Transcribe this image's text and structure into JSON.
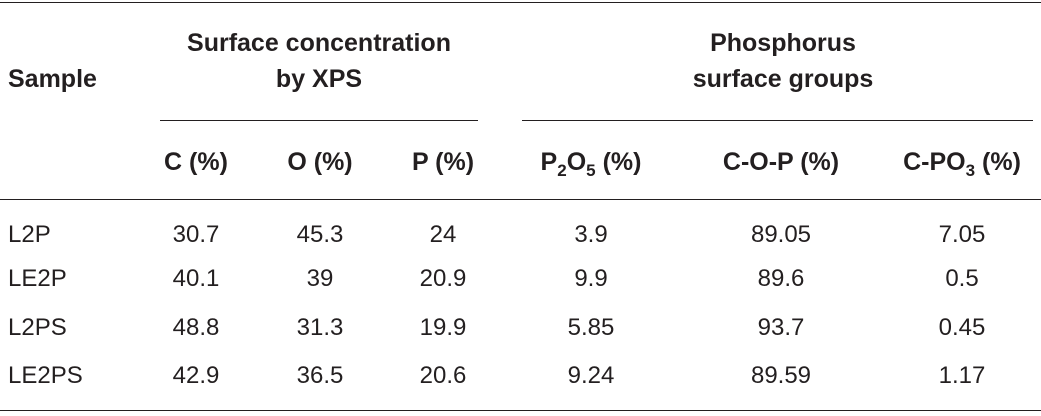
{
  "table": {
    "group_headers": {
      "sample": "Sample",
      "surface_line1": "Surface concentration",
      "surface_line2": "by XPS",
      "phosphorus_line1": "Phosphorus",
      "phosphorus_line2": "surface groups"
    },
    "columns": [
      {
        "main": "C (%)",
        "sub": "",
        "tail": ""
      },
      {
        "main": "O (%)",
        "sub": "",
        "tail": ""
      },
      {
        "main": "P (%)",
        "sub": "",
        "tail": ""
      },
      {
        "main": "P",
        "sub": "2",
        "mid": "O",
        "sub2": "5",
        "tail": " (%)"
      },
      {
        "main": "C-O-P (%)",
        "sub": "",
        "tail": ""
      },
      {
        "main": "C-PO",
        "sub": "3",
        "tail": " (%)"
      }
    ],
    "rows": [
      {
        "sample": "L2P",
        "values": [
          "30.7",
          "45.3",
          "24",
          "3.9",
          "89.05",
          "7.05"
        ]
      },
      {
        "sample": "LE2P",
        "values": [
          "40.1",
          "39",
          "20.9",
          "9.9",
          "89.6",
          "0.5"
        ]
      },
      {
        "sample": "L2PS",
        "values": [
          "48.8",
          "31.3",
          "19.9",
          "5.85",
          "93.7",
          "0.45"
        ]
      },
      {
        "sample": "LE2PS",
        "values": [
          "42.9",
          "36.5",
          "20.6",
          "9.24",
          "89.59",
          "1.17"
        ]
      }
    ]
  }
}
